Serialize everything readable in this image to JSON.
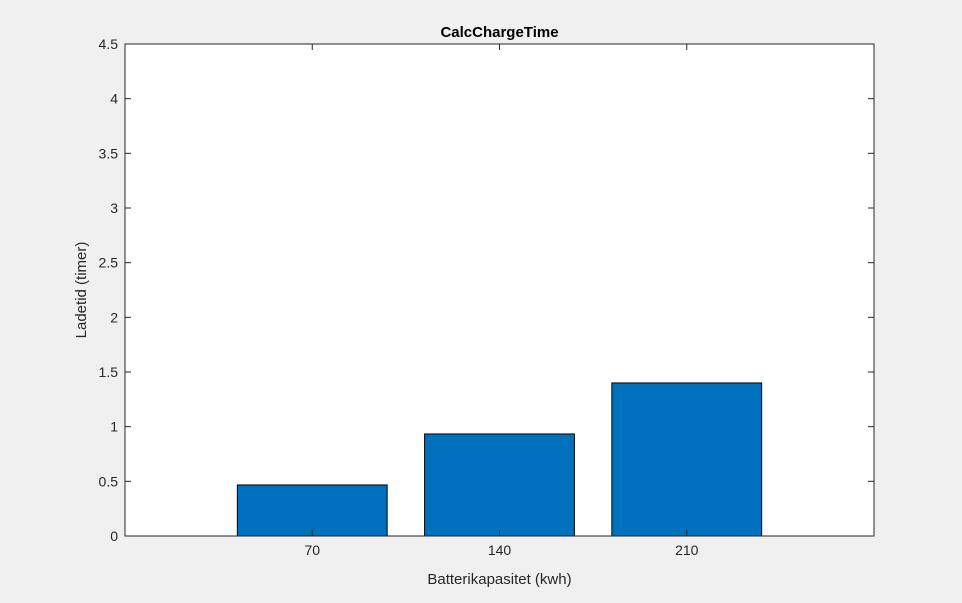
{
  "chart_data": {
    "type": "bar",
    "title": "CalcChargeTime",
    "xlabel": "Batterikapasitet (kwh)",
    "ylabel": "Ladetid (timer)",
    "categories": [
      "70",
      "140",
      "210"
    ],
    "values": [
      0.4667,
      0.9333,
      1.4
    ],
    "ylim": [
      0,
      4.5
    ],
    "yticks": [
      "0",
      "0.5",
      "1",
      "1.5",
      "2",
      "2.5",
      "3",
      "3.5",
      "4",
      "4.5"
    ],
    "grid": false,
    "legend": "none",
    "colors": {
      "bar": "#0072bd",
      "bar_edge": "#000000",
      "axes_bg": "#ffffff",
      "figure_bg": "#f0f0f0",
      "axis_line": "#262626"
    }
  }
}
